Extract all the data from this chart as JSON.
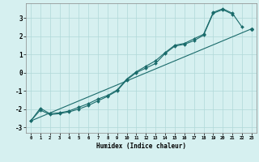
{
  "xlabel": "Humidex (Indice chaleur)",
  "background_color": "#d6f0f0",
  "grid_color": "#b0d8d8",
  "line_color": "#1a6b6b",
  "x": [
    0,
    1,
    2,
    3,
    4,
    5,
    6,
    7,
    8,
    9,
    10,
    11,
    12,
    13,
    14,
    15,
    16,
    17,
    18,
    19,
    20,
    21,
    22,
    23
  ],
  "line1_x": [
    0,
    1,
    2,
    3,
    4,
    5,
    6,
    7,
    8,
    9,
    10,
    11,
    12,
    13,
    14,
    15,
    16,
    17,
    18,
    19,
    20,
    21,
    22,
    23
  ],
  "line1_y": [
    -2.65,
    -1.95,
    -2.25,
    -2.2,
    -2.1,
    -1.9,
    -1.7,
    -1.45,
    -1.25,
    -0.95,
    -0.35,
    0.05,
    0.35,
    0.65,
    1.1,
    1.5,
    1.6,
    1.85,
    2.1,
    3.3,
    3.5,
    3.25,
    2.5,
    null
  ],
  "line2_x": [
    0,
    1,
    2,
    3,
    4,
    5,
    6,
    7,
    8,
    9,
    10,
    11,
    12,
    13,
    14,
    15,
    16,
    17,
    18,
    19,
    20,
    21
  ],
  "line2_y": [
    -2.65,
    -2.05,
    -2.3,
    -2.25,
    -2.15,
    -2.0,
    -1.8,
    -1.55,
    -1.3,
    -1.0,
    -0.4,
    0.0,
    0.25,
    0.5,
    1.05,
    1.45,
    1.55,
    1.75,
    2.05,
    3.25,
    3.45,
    3.2
  ],
  "line3_x": [
    0,
    23
  ],
  "line3_y": [
    -2.65,
    2.4
  ],
  "end_marker_x": [
    23
  ],
  "end_marker_y": [
    2.4
  ],
  "yticks": [
    -3,
    -2,
    -1,
    0,
    1,
    2,
    3
  ],
  "xticks": [
    0,
    1,
    2,
    3,
    4,
    5,
    6,
    7,
    8,
    9,
    10,
    11,
    12,
    13,
    14,
    15,
    16,
    17,
    18,
    19,
    20,
    21,
    22,
    23
  ],
  "xlim": [
    -0.5,
    23.5
  ],
  "ylim": [
    -3.3,
    3.8
  ]
}
